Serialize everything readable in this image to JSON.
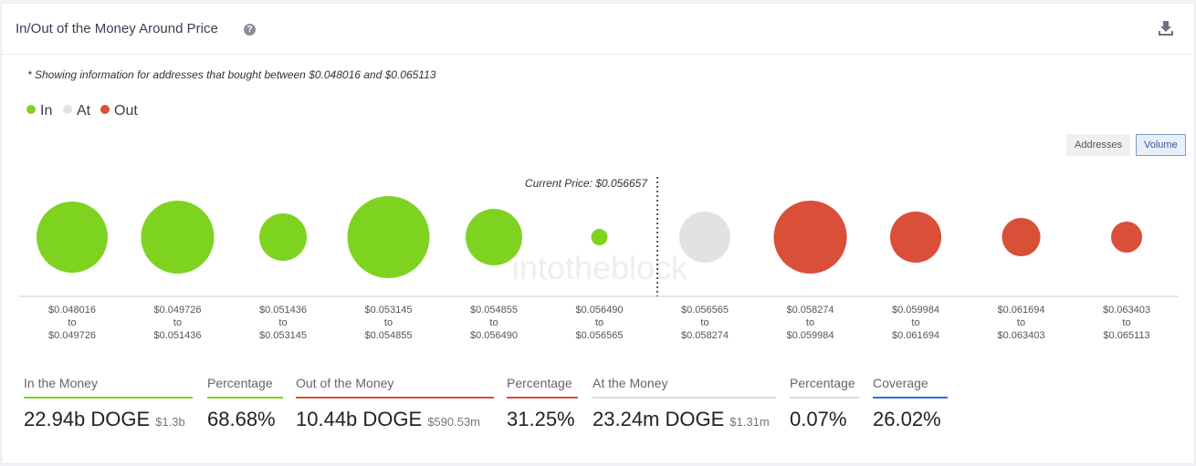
{
  "header": {
    "title": "In/Out of the Money Around Price"
  },
  "note": "* Showing information for addresses that bought between $0.048016 and $0.065113",
  "legend": [
    {
      "label": "In",
      "color": "#7ed321"
    },
    {
      "label": "At",
      "color": "#e2e2e2"
    },
    {
      "label": "Out",
      "color": "#d94f38"
    }
  ],
  "toggle": [
    "Addresses",
    "Volume"
  ],
  "watermark": "intotheblock",
  "chart_data": {
    "type": "bubble",
    "annotation": "Current Price: $0.056657",
    "categories": [
      "$0.048016\nto\n$0.049726",
      "$0.049726\nto\n$0.051436",
      "$0.051436\nto\n$0.053145",
      "$0.053145\nto\n$0.054855",
      "$0.054855\nto\n$0.056490",
      "$0.056490\nto\n$0.056565",
      "$0.056565\nto\n$0.058274",
      "$0.058274\nto\n$0.059984",
      "$0.059984\nto\n$0.061694",
      "$0.061694\nto\n$0.063403",
      "$0.063403\nto\n$0.065113"
    ],
    "values": [
      5.08,
      5.35,
      2.26,
      6.77,
      3.21,
      0.27,
      2.62,
      5.36,
      2.63,
      1.48,
      0.97
    ],
    "colors": [
      "#7ed321",
      "#7ed321",
      "#7ed321",
      "#7ed321",
      "#7ed321",
      "#7ed321",
      "#e2e2e2",
      "#d94f38",
      "#d94f38",
      "#d94f38",
      "#d94f38"
    ]
  },
  "summary": [
    {
      "label": "In the Money",
      "value": "22.94b DOGE",
      "sub": "$1.3b",
      "color": "#7ed321"
    },
    {
      "label": "Percentage",
      "value": "68.68%",
      "color": "#7ed321"
    },
    {
      "label": "Out of the Money",
      "value": "10.44b DOGE",
      "sub": "$590.53m",
      "color": "#d94f38"
    },
    {
      "label": "Percentage",
      "value": "31.25%",
      "color": "#d94f38"
    },
    {
      "label": "At the Money",
      "value": "23.24m DOGE",
      "sub": "$1.31m",
      "color": "#dcdcdc"
    },
    {
      "label": "Percentage",
      "value": "0.07%",
      "color": "#dcdcdc"
    },
    {
      "label": "Coverage",
      "value": "26.02%",
      "color": "#2f6fd1"
    }
  ]
}
